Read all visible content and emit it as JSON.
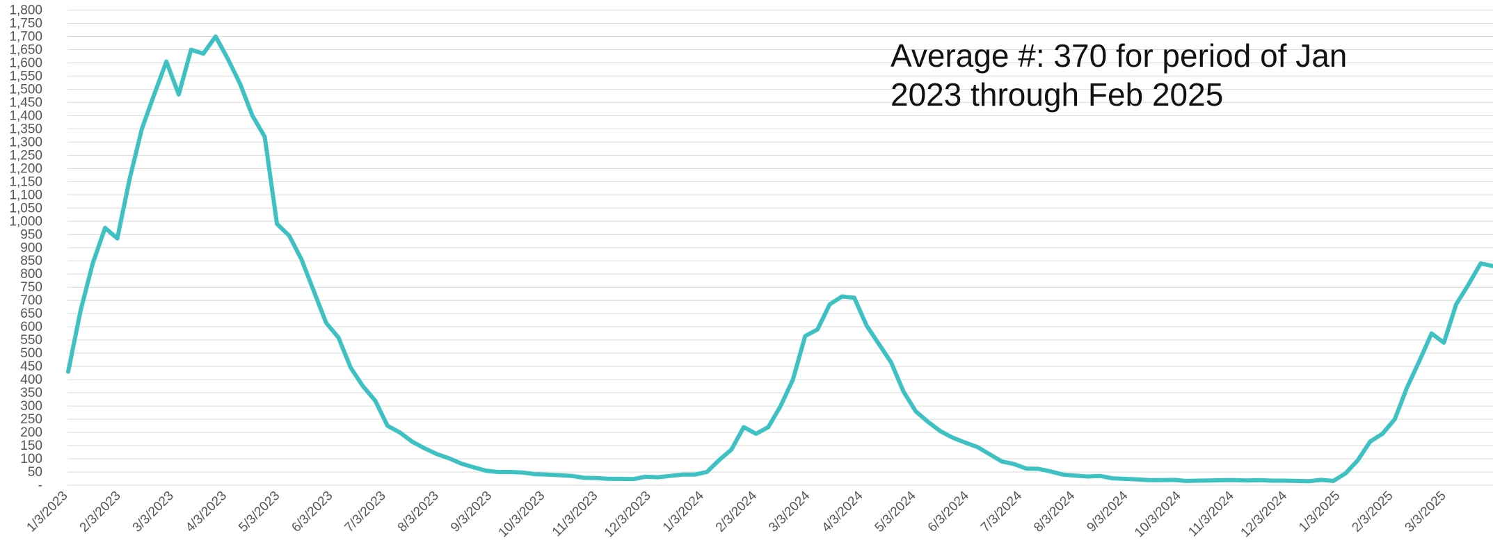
{
  "chart_data": {
    "type": "line",
    "title": "",
    "xlabel": "",
    "ylabel": "",
    "ylim": [
      0,
      1800
    ],
    "y_ticks": [
      "-",
      "50",
      "100",
      "150",
      "200",
      "250",
      "300",
      "350",
      "400",
      "450",
      "500",
      "550",
      "600",
      "650",
      "700",
      "750",
      "800",
      "850",
      "900",
      "950",
      "1,000",
      "1,050",
      "1,100",
      "1,150",
      "1,200",
      "1,250",
      "1,300",
      "1,350",
      "1,400",
      "1,450",
      "1,500",
      "1,550",
      "1,600",
      "1,650",
      "1,700",
      "1,750",
      "1,800"
    ],
    "x_ticks": [
      "1/3/2023",
      "2/3/2023",
      "3/3/2023",
      "4/3/2023",
      "5/3/2023",
      "6/3/2023",
      "7/3/2023",
      "8/3/2023",
      "9/3/2023",
      "10/3/2023",
      "11/3/2023",
      "12/3/2023",
      "1/3/2024",
      "2/3/2024",
      "3/3/2024",
      "4/3/2024",
      "5/3/2024",
      "6/3/2024",
      "7/3/2024",
      "8/3/2024",
      "9/3/2024",
      "10/3/2024",
      "11/3/2024",
      "12/3/2024",
      "1/3/2025",
      "2/3/2025",
      "3/3/2025"
    ],
    "grid": true,
    "legend": "none",
    "line_color": "#3ec1c3",
    "series": [
      {
        "values": [
          430,
          660,
          840,
          975,
          935,
          1160,
          1350,
          1480,
          1605,
          1480,
          1650,
          1635,
          1700,
          1615,
          1520,
          1400,
          1320,
          990,
          945,
          855,
          735,
          615,
          560,
          445,
          375,
          320,
          225,
          200,
          165,
          140,
          118,
          102,
          82,
          68,
          55,
          50,
          50,
          48,
          42,
          40,
          38,
          35,
          28,
          27,
          24,
          24,
          23,
          32,
          30,
          35,
          40,
          40,
          50,
          95,
          135,
          220,
          195,
          220,
          300,
          400,
          565,
          590,
          685,
          715,
          710,
          605,
          535,
          465,
          355,
          280,
          240,
          205,
          180,
          162,
          145,
          118,
          90,
          80,
          63,
          62,
          52,
          40,
          36,
          33,
          35,
          26,
          24,
          22,
          19,
          19,
          20,
          16,
          17,
          18,
          19,
          19,
          18,
          19,
          17,
          17,
          16,
          15,
          20,
          16,
          45,
          95,
          165,
          195,
          250,
          370,
          470,
          575,
          540,
          685,
          760,
          840,
          830
        ]
      }
    ],
    "annotation": "Average #: 370 for period of Jan 2023 through Feb 2025"
  }
}
